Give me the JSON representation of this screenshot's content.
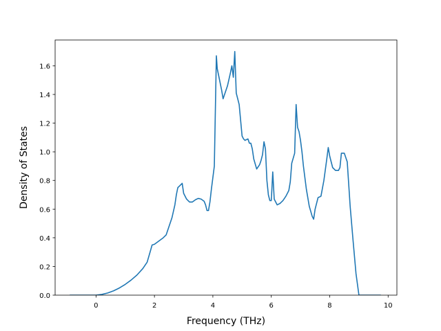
{
  "chart_data": {
    "type": "line",
    "title": "",
    "xlabel": "Frequency (THz)",
    "ylabel": "Density of States",
    "xlim": [
      -1.4,
      10.3
    ],
    "ylim": [
      0,
      1.78
    ],
    "xticks": [
      0,
      2,
      4,
      6,
      8,
      10
    ],
    "xtick_labels": [
      "0",
      "2",
      "4",
      "6",
      "8",
      "10"
    ],
    "yticks": [
      0.0,
      0.2,
      0.4,
      0.6,
      0.8,
      1.0,
      1.2,
      1.4,
      1.6
    ],
    "ytick_labels": [
      "0.0",
      "0.2",
      "0.4",
      "0.6",
      "0.8",
      "1.0",
      "1.2",
      "1.4",
      "1.6"
    ],
    "grid": false,
    "line_color": "#1f77b4",
    "series": [
      {
        "x": [
          -0.9,
          -0.5,
          0.0,
          0.2,
          0.4,
          0.6,
          0.8,
          1.0,
          1.2,
          1.4,
          1.6,
          1.75,
          1.85,
          1.92,
          2.0,
          2.1,
          2.2,
          2.3,
          2.4,
          2.5,
          2.6,
          2.7,
          2.75,
          2.8,
          2.85,
          2.9,
          2.95,
          3.0,
          3.1,
          3.2,
          3.3,
          3.4,
          3.5,
          3.6,
          3.7,
          3.75,
          3.8,
          3.85,
          3.9,
          3.95,
          4.05,
          4.12,
          4.15,
          4.2,
          4.3,
          4.35,
          4.4,
          4.5,
          4.6,
          4.65,
          4.7,
          4.75,
          4.8,
          4.85,
          4.9,
          5.0,
          5.05,
          5.1,
          5.2,
          5.25,
          5.3,
          5.35,
          5.4,
          5.5,
          5.6,
          5.65,
          5.7,
          5.75,
          5.8,
          5.85,
          5.9,
          5.95,
          6.0,
          6.05,
          6.1,
          6.2,
          6.3,
          6.4,
          6.5,
          6.6,
          6.65,
          6.7,
          6.8,
          6.85,
          6.9,
          6.95,
          7.0,
          7.05,
          7.1,
          7.15,
          7.2,
          7.3,
          7.4,
          7.45,
          7.5,
          7.6,
          7.7,
          7.8,
          7.9,
          7.95,
          8.0,
          8.1,
          8.2,
          8.3,
          8.35,
          8.4,
          8.5,
          8.55,
          8.6,
          8.7,
          8.8,
          8.9,
          9.0,
          9.5,
          9.75
        ],
        "y": [
          0.0,
          0.0,
          0.0,
          0.005,
          0.015,
          0.03,
          0.05,
          0.075,
          0.105,
          0.14,
          0.185,
          0.23,
          0.3,
          0.35,
          0.355,
          0.37,
          0.385,
          0.4,
          0.42,
          0.48,
          0.54,
          0.63,
          0.7,
          0.75,
          0.76,
          0.77,
          0.78,
          0.71,
          0.67,
          0.65,
          0.65,
          0.665,
          0.675,
          0.67,
          0.655,
          0.63,
          0.59,
          0.59,
          0.65,
          0.74,
          0.9,
          1.67,
          1.58,
          1.53,
          1.43,
          1.37,
          1.4,
          1.46,
          1.55,
          1.6,
          1.52,
          1.7,
          1.41,
          1.37,
          1.33,
          1.11,
          1.09,
          1.08,
          1.09,
          1.06,
          1.06,
          1.02,
          0.95,
          0.88,
          0.91,
          0.94,
          0.98,
          1.07,
          1.02,
          0.8,
          0.7,
          0.66,
          0.66,
          0.86,
          0.67,
          0.63,
          0.64,
          0.66,
          0.69,
          0.73,
          0.79,
          0.92,
          0.99,
          1.33,
          1.17,
          1.14,
          1.08,
          1.0,
          0.9,
          0.82,
          0.74,
          0.62,
          0.55,
          0.53,
          0.6,
          0.68,
          0.69,
          0.8,
          0.95,
          1.03,
          0.97,
          0.89,
          0.87,
          0.87,
          0.89,
          0.99,
          0.99,
          0.96,
          0.93,
          0.62,
          0.38,
          0.15,
          0.0,
          0.0,
          0.0
        ]
      }
    ]
  }
}
